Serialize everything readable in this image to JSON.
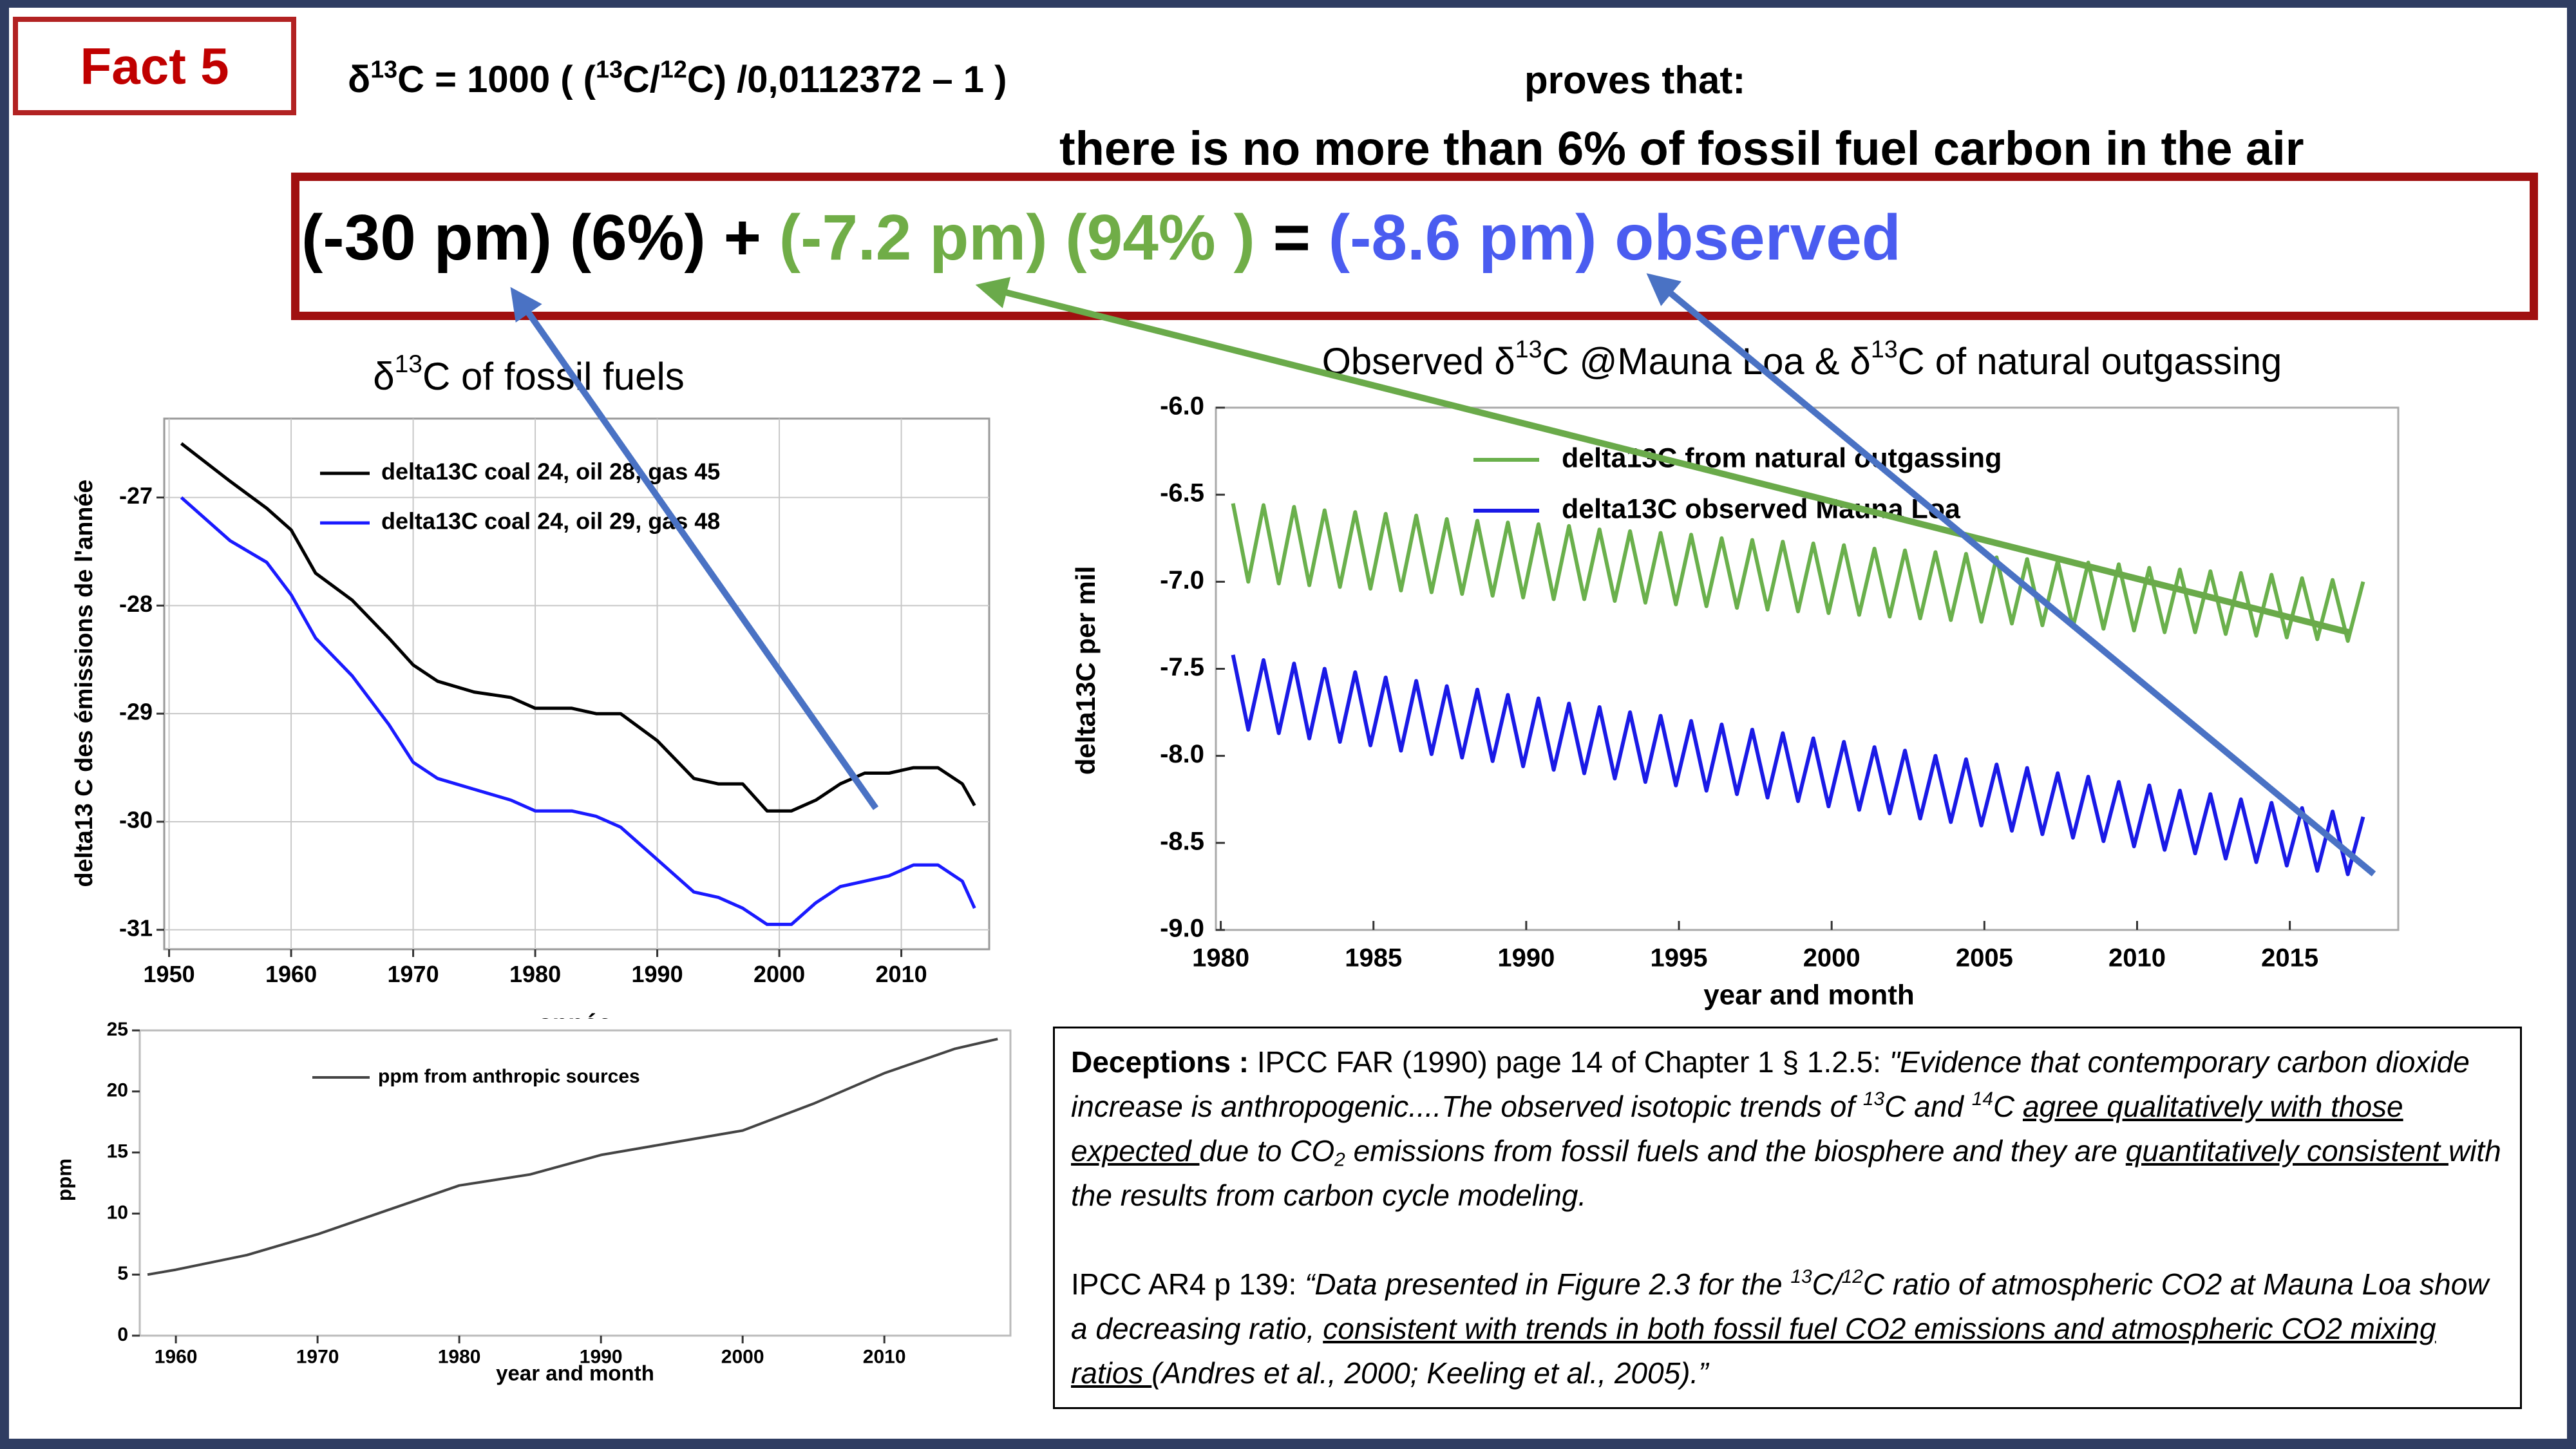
{
  "fact": "Fact 5",
  "formula": [
    "δ",
    "13",
    "C = 1000 ( (",
    "13",
    "C/",
    "12",
    "C) /0,0112372 – 1 )"
  ],
  "proves": "proves that:",
  "claim": "there is no more than 6% of fossil fuel carbon in the air",
  "equation": [
    {
      "text": "(-30 pm) (6%) + ",
      "color": "#000000"
    },
    {
      "text": "(-7.2 pm) (94% )",
      "color": "#70ad47"
    },
    {
      "text": " = ",
      "color": "#000000"
    },
    {
      "text": "(-8.6 pm) observed",
      "color": "#4a5cf0"
    }
  ],
  "deceptions": {
    "p1": [
      "Deceptions :",
      " IPCC FAR (1990) page 14 of Chapter 1 § 1.2.5: ",
      "\"Evidence that contemporary carbon dioxide increase is anthropogenic....The observed isotopic trends of ",
      "13",
      "C and ",
      "14",
      "C ",
      "agree qualitatively with those expected ",
      "due to CO",
      "2",
      " emissions from fossil fuels and the biosphere and they are ",
      "quantitatively consistent ",
      "with the results from carbon cycle modeling."
    ],
    "p2": [
      "IPCC AR4 p 139: ",
      "“Data presented in Figure 2.3 for the ",
      "13",
      "C/",
      "12",
      "C ratio of atmospheric CO2 at Mauna Loa show a decreasing ratio, ",
      "consistent with trends in both fossil fuel CO2 emissions and atmospheric CO2 mixing ratios ",
      "(Andres et al., 2000; Keeling et al., 2005).”"
    ]
  },
  "chart_data": [
    {
      "type": "line",
      "title": [
        "δ",
        "13",
        "C of  fossil fuels"
      ],
      "x_label": "année",
      "y_label": "delta13 C des émissions de l'année",
      "x": [
        1951,
        1955,
        1958,
        1960,
        1962,
        1965,
        1968,
        1970,
        1972,
        1975,
        1978,
        1980,
        1983,
        1985,
        1987,
        1990,
        1993,
        1995,
        1997,
        1999,
        2001,
        2003,
        2005,
        2007,
        2009,
        2011,
        2013,
        2015,
        2016
      ],
      "series": [
        {
          "name": "delta13C coal 24, oil 28, gas 45",
          "color": "#000000",
          "values": [
            -26.5,
            -26.85,
            -27.1,
            -27.3,
            -27.7,
            -27.95,
            -28.3,
            -28.55,
            -28.7,
            -28.8,
            -28.85,
            -28.95,
            -28.95,
            -29.0,
            -29.0,
            -29.25,
            -29.6,
            -29.65,
            -29.65,
            -29.9,
            -29.9,
            -29.8,
            -29.65,
            -29.55,
            -29.55,
            -29.5,
            -29.5,
            -29.65,
            -29.85
          ]
        },
        {
          "name": "delta13C coal 24, oil 29, gas 48",
          "color": "#1a1aff",
          "values": [
            -27.0,
            -27.4,
            -27.6,
            -27.9,
            -28.3,
            -28.65,
            -29.1,
            -29.45,
            -29.6,
            -29.7,
            -29.8,
            -29.9,
            -29.9,
            -29.95,
            -30.05,
            -30.35,
            -30.65,
            -30.7,
            -30.8,
            -30.95,
            -30.95,
            -30.75,
            -30.6,
            -30.55,
            -30.5,
            -30.4,
            -30.4,
            -30.55,
            -30.8
          ]
        }
      ],
      "xlim": [
        1949.6,
        2017.2
      ],
      "xticks": [
        1950,
        1960,
        1970,
        1980,
        1990,
        2000,
        2010
      ],
      "ylim": [
        -31.18,
        -26.27
      ],
      "yticks": [
        -31,
        -30,
        -29,
        -28,
        -27
      ],
      "grid": true
    },
    {
      "type": "line",
      "title": [
        "Observed δ",
        "13",
        "C @Mauna Loa & δ",
        "13",
        "C of natural outgassing"
      ],
      "x_label": "year and month",
      "y_label": "delta13C per mil",
      "x": [
        1980.4,
        1980.9,
        1981.4,
        1981.9,
        1982.4,
        1982.9,
        1983.4,
        1983.9,
        1984.4,
        1984.9,
        1985.4,
        1985.9,
        1986.4,
        1986.9,
        1987.4,
        1987.9,
        1988.4,
        1988.9,
        1989.4,
        1989.9,
        1990.4,
        1990.9,
        1991.4,
        1991.9,
        1992.4,
        1992.9,
        1993.4,
        1993.9,
        1994.4,
        1994.9,
        1995.4,
        1995.9,
        1996.4,
        1996.9,
        1997.4,
        1997.9,
        1998.4,
        1998.9,
        1999.4,
        1999.9,
        2000.4,
        2000.9,
        2001.4,
        2001.9,
        2002.4,
        2002.9,
        2003.4,
        2003.9,
        2004.4,
        2004.9,
        2005.4,
        2005.9,
        2006.4,
        2006.9,
        2007.4,
        2007.9,
        2008.4,
        2008.9,
        2009.4,
        2009.9,
        2010.4,
        2010.9,
        2011.4,
        2011.9,
        2012.4,
        2012.9,
        2013.4,
        2013.9,
        2014.4,
        2014.9,
        2015.4,
        2015.9,
        2016.4,
        2016.9,
        2017.4
      ],
      "series": [
        {
          "name": "delta13C from natural outgassing",
          "color": "#6ab04c",
          "values": [
            -6.55,
            -7.0,
            -6.56,
            -7.01,
            -6.57,
            -7.02,
            -6.59,
            -7.03,
            -6.6,
            -7.04,
            -6.61,
            -7.05,
            -6.62,
            -7.06,
            -6.64,
            -7.07,
            -6.65,
            -7.08,
            -6.66,
            -7.09,
            -6.67,
            -7.1,
            -6.68,
            -7.1,
            -6.7,
            -7.11,
            -6.71,
            -7.12,
            -6.72,
            -7.13,
            -6.73,
            -7.14,
            -6.75,
            -7.15,
            -6.76,
            -7.16,
            -6.77,
            -7.17,
            -6.78,
            -7.18,
            -6.79,
            -7.19,
            -6.81,
            -7.2,
            -6.82,
            -7.21,
            -6.83,
            -7.22,
            -6.84,
            -7.23,
            -6.86,
            -7.24,
            -6.87,
            -7.25,
            -6.88,
            -7.26,
            -6.89,
            -7.27,
            -6.9,
            -7.28,
            -6.92,
            -7.29,
            -6.93,
            -7.29,
            -6.94,
            -7.3,
            -6.95,
            -7.31,
            -6.96,
            -7.32,
            -6.98,
            -7.33,
            -6.99,
            -7.34,
            -7.0
          ]
        },
        {
          "name": "delta13C observed Mauna Loa",
          "color": "#1a1ae6",
          "values": [
            -7.42,
            -7.85,
            -7.45,
            -7.87,
            -7.47,
            -7.9,
            -7.5,
            -7.92,
            -7.52,
            -7.94,
            -7.55,
            -7.97,
            -7.57,
            -7.99,
            -7.6,
            -8.01,
            -7.62,
            -8.03,
            -7.65,
            -8.06,
            -7.67,
            -8.08,
            -7.7,
            -8.1,
            -7.72,
            -8.13,
            -7.75,
            -8.15,
            -7.77,
            -8.17,
            -7.8,
            -8.2,
            -7.82,
            -8.22,
            -7.85,
            -8.24,
            -7.87,
            -8.26,
            -7.9,
            -8.29,
            -7.92,
            -8.31,
            -7.95,
            -8.33,
            -7.97,
            -8.36,
            -8.0,
            -8.38,
            -8.02,
            -8.4,
            -8.05,
            -8.43,
            -8.07,
            -8.45,
            -8.1,
            -8.47,
            -8.12,
            -8.49,
            -8.15,
            -8.52,
            -8.17,
            -8.54,
            -8.2,
            -8.56,
            -8.22,
            -8.59,
            -8.25,
            -8.61,
            -8.27,
            -8.63,
            -8.3,
            -8.66,
            -8.32,
            -8.68,
            -8.35
          ]
        }
      ],
      "xlim": [
        1979.84,
        2018.55
      ],
      "xticks": [
        1980,
        1985,
        1990,
        1995,
        2000,
        2005,
        2010,
        2015
      ],
      "ylim": [
        -9,
        -6
      ],
      "yticks": [
        {
          "value": -9,
          "label": "-9.0"
        },
        {
          "value": -8.5,
          "label": "-8.5"
        },
        {
          "value": -8,
          "label": "-8.0"
        },
        {
          "value": -7.5,
          "label": "-7.5"
        },
        {
          "value": -7,
          "label": "-7.0"
        },
        {
          "value": -6.5,
          "label": "-6.5"
        },
        {
          "value": -6,
          "label": "-6.0"
        }
      ],
      "grid": false
    },
    {
      "type": "line",
      "x_label": "year and month",
      "y_label": "ppm",
      "x": [
        1958,
        1960,
        1965,
        1970,
        1975,
        1980,
        1985,
        1990,
        1995,
        2000,
        2005,
        2010,
        2015,
        2018
      ],
      "series": [
        {
          "name": "ppm from anthropic sources",
          "color": "#444444",
          "values": [
            5.0,
            5.4,
            6.6,
            8.3,
            10.3,
            12.3,
            13.2,
            14.8,
            15.8,
            16.8,
            19.0,
            21.5,
            23.5,
            24.3
          ]
        }
      ],
      "xlim": [
        1957.45,
        2018.9
      ],
      "xticks": [
        1960,
        1970,
        1980,
        1990,
        2000,
        2010
      ],
      "ylim": [
        0,
        25
      ],
      "yticks": [
        0,
        5,
        10,
        15,
        20,
        25
      ],
      "grid": false
    }
  ]
}
